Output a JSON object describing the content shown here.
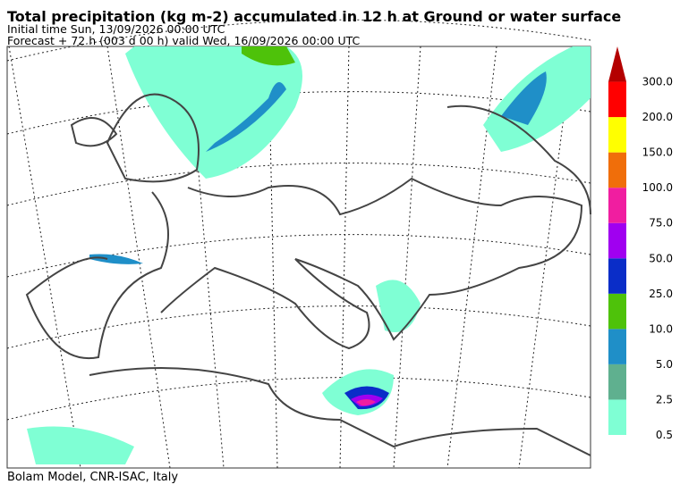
{
  "header": {
    "title": "Total precipitation (kg m-2) accumulated in  12 h at Ground or water surface",
    "line2": "Initial time  Sun, 13/09/2026  00:00 UTC",
    "line3": "Forecast  +  72 h  (003 d 00 h)  valid Wed, 16/09/2026 00:00 UTC"
  },
  "colorbar": {
    "labels": [
      "0.5",
      "2.5",
      "5.0",
      "10.0",
      "25.0",
      "50.0",
      "75.0",
      "100.0",
      "150.0",
      "200.0",
      "300.0"
    ],
    "colors": [
      "#7fffd4",
      "#5fb08f",
      "#1f8fc8",
      "#4ec20a",
      "#0a2dc8",
      "#a000f0",
      "#f01ea0",
      "#f06e0a",
      "#ffff00",
      "#ff0000",
      "#b40000"
    ]
  },
  "footer": "Bolam Model, CNR-ISAC, Italy"
}
